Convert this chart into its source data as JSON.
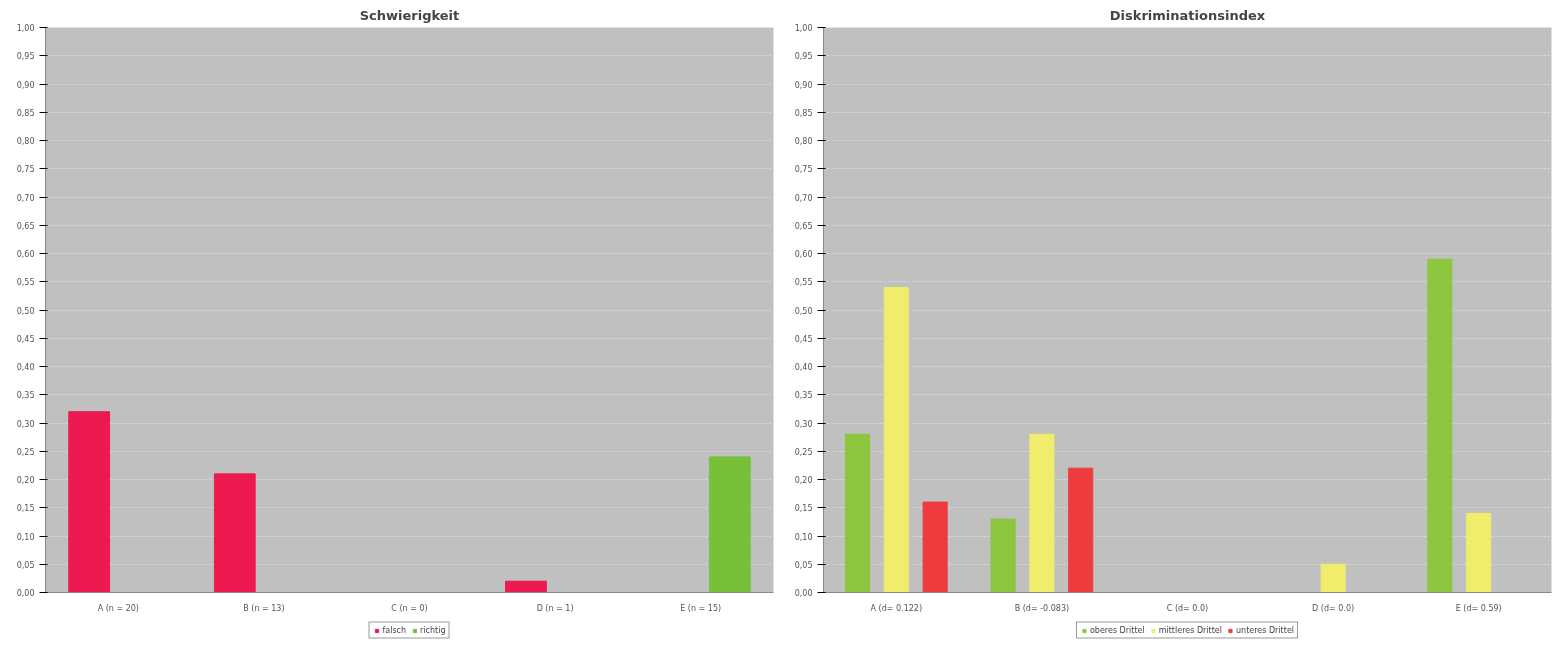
{
  "chart_data": [
    {
      "type": "bar",
      "title": "Schwierigkeit",
      "categories": [
        "A (n = 20)",
        "B (n = 13)",
        "C (n = 0)",
        "D (n = 1)",
        "E (n = 15)"
      ],
      "series": [
        {
          "name": "falsch",
          "color": "#ec1a50",
          "values": [
            0.32,
            0.21,
            0,
            0.02,
            0
          ]
        },
        {
          "name": "richtig",
          "color": "#78c03a",
          "values": [
            0,
            0,
            0,
            0,
            0.24
          ]
        }
      ],
      "ylim": [
        0,
        1
      ],
      "yticks": [
        {
          "value": 0,
          "label": "0,00"
        },
        {
          "value": 0.05,
          "label": "0,05"
        },
        {
          "value": 0.1,
          "label": "0,10"
        },
        {
          "value": 0.15,
          "label": "0,15"
        },
        {
          "value": 0.2,
          "label": "0,20"
        },
        {
          "value": 0.25,
          "label": "0,25"
        },
        {
          "value": 0.3,
          "label": "0,30"
        },
        {
          "value": 0.35,
          "label": "0,35"
        },
        {
          "value": 0.4,
          "label": "0,40"
        },
        {
          "value": 0.45,
          "label": "0,45"
        },
        {
          "value": 0.5,
          "label": "0,50"
        },
        {
          "value": 0.55,
          "label": "0,55"
        },
        {
          "value": 0.6,
          "label": "0,60"
        },
        {
          "value": 0.65,
          "label": "0,65"
        },
        {
          "value": 0.7,
          "label": "0,70"
        },
        {
          "value": 0.75,
          "label": "0,75"
        },
        {
          "value": 0.8,
          "label": "0,80"
        },
        {
          "value": 0.85,
          "label": "0,85"
        },
        {
          "value": 0.9,
          "label": "0,90"
        },
        {
          "value": 0.95,
          "label": "0,95"
        },
        {
          "value": 1,
          "label": "1,00"
        }
      ],
      "grid": "y",
      "legend": "bottom"
    },
    {
      "type": "bar",
      "title": "Diskriminationsindex",
      "categories": [
        "A (d= 0.122)",
        "B (d= -0.083)",
        "C (d= 0.0)",
        "D (d= 0.0)",
        "E (d= 0.59)"
      ],
      "series": [
        {
          "name": "oberes Drittel",
          "color": "#8cc63e",
          "values": [
            0.28,
            0.13,
            0,
            0,
            0.59
          ]
        },
        {
          "name": "mittleres Drittel",
          "color": "#f0ec6c",
          "values": [
            0.54,
            0.28,
            0,
            0.05,
            0.14
          ]
        },
        {
          "name": "unteres Drittel",
          "color": "#ee3b3e",
          "values": [
            0.16,
            0.22,
            0,
            0,
            0
          ]
        }
      ],
      "ylim": [
        0,
        1
      ],
      "yticks": [
        {
          "value": 0,
          "label": "0,00"
        },
        {
          "value": 0.05,
          "label": "0,05"
        },
        {
          "value": 0.1,
          "label": "0,10"
        },
        {
          "value": 0.15,
          "label": "0,15"
        },
        {
          "value": 0.2,
          "label": "0,20"
        },
        {
          "value": 0.25,
          "label": "0,25"
        },
        {
          "value": 0.3,
          "label": "0,30"
        },
        {
          "value": 0.35,
          "label": "0,35"
        },
        {
          "value": 0.4,
          "label": "0,40"
        },
        {
          "value": 0.45,
          "label": "0,45"
        },
        {
          "value": 0.5,
          "label": "0,50"
        },
        {
          "value": 0.55,
          "label": "0,55"
        },
        {
          "value": 0.6,
          "label": "0,60"
        },
        {
          "value": 0.65,
          "label": "0,65"
        },
        {
          "value": 0.7,
          "label": "0,70"
        },
        {
          "value": 0.75,
          "label": "0,75"
        },
        {
          "value": 0.8,
          "label": "0,80"
        },
        {
          "value": 0.85,
          "label": "0,85"
        },
        {
          "value": 0.9,
          "label": "0,90"
        },
        {
          "value": 0.95,
          "label": "0,95"
        },
        {
          "value": 1,
          "label": "1,00"
        }
      ],
      "grid": "y",
      "legend": "bottom"
    }
  ]
}
